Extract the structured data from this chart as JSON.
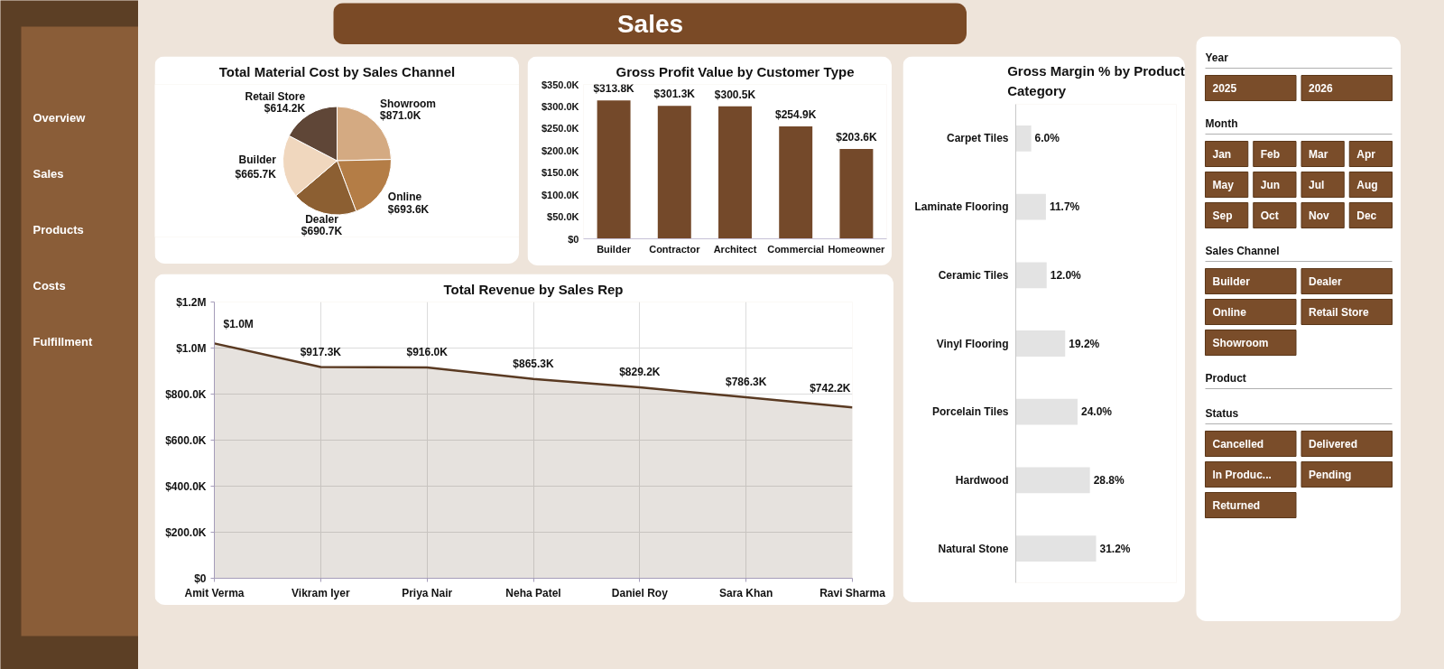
{
  "chart_data": [
    {
      "type": "other",
      "annotations": [
        "Overview",
        "Sales",
        "Products",
        "Costs",
        "Fulfillment"
      ]
    },
    {
      "type": "other",
      "title": "Sales"
    },
    {
      "type": "pie",
      "title": "Total Material Cost by Sales Channel",
      "categories": [
        "Showroom",
        "Online",
        "Dealer",
        "Builder",
        "Retail Store"
      ],
      "values": [
        871.0,
        693.6,
        690.7,
        665.7,
        614.2
      ],
      "colors": [
        "#d4aa82",
        "#b47d46",
        "#8c5f32",
        "#f0d7be",
        "#5f4637"
      ],
      "value_labels": [
        "$871.0K",
        "$693.6K",
        "$690.7K",
        "$665.7K",
        "$614.2K"
      ]
    },
    {
      "type": "bar",
      "title": "Gross Profit Value by Customer Type",
      "categories": [
        "Builder",
        "Contractor",
        "Architect",
        "Commercial",
        "Homeowner"
      ],
      "values": [
        313.8,
        301.3,
        300.5,
        254.9,
        203.6
      ],
      "color": "#74492a",
      "ylim": [
        0,
        350
      ],
      "yticks": [
        {
          "value": 0,
          "label": "$0"
        },
        {
          "value": 50,
          "label": "$50.0K"
        },
        {
          "value": 100,
          "label": "$100.0K"
        },
        {
          "value": 150,
          "label": "$150.0K"
        },
        {
          "value": 200,
          "label": "$200.0K"
        },
        {
          "value": 250,
          "label": "$250.0K"
        },
        {
          "value": 300,
          "label": "$300.0K"
        },
        {
          "value": 350,
          "label": "$350.0K"
        }
      ],
      "value_labels": [
        "$313.8K",
        "$301.3K",
        "$300.5K",
        "$254.9K",
        "$203.6K"
      ]
    },
    {
      "type": "area",
      "title": "Total Revenue by Sales Rep",
      "categories": [
        "Amit Verma",
        "Vikram Iyer",
        "Priya Nair",
        "Neha Patel",
        "Daniel Roy",
        "Sara Khan",
        "Ravi Sharma"
      ],
      "values": [
        1020000,
        917300,
        916000,
        865300,
        829200,
        786300,
        742200
      ],
      "color": "#5a3a22",
      "ylim": [
        0,
        1200000
      ],
      "yticks": [
        {
          "value": 0,
          "label": "$0"
        },
        {
          "value": 200000,
          "label": "$200.0K"
        },
        {
          "value": 400000,
          "label": "$400.0K"
        },
        {
          "value": 600000,
          "label": "$600.0K"
        },
        {
          "value": 800000,
          "label": "$800.0K"
        },
        {
          "value": 1000000,
          "label": "$1.0M"
        },
        {
          "value": 1200000,
          "label": "$1.2M"
        }
      ],
      "grid": true,
      "value_labels": [
        "$1.0M",
        "$917.3K",
        "$916.0K",
        "$865.3K",
        "$829.2K",
        "$786.3K",
        "$742.2K"
      ]
    },
    {
      "type": "bar",
      "orientation": "horizontal",
      "title": "Gross Margin % by Product Category",
      "categories": [
        "Carpet Tiles",
        "Laminate Flooring",
        "Ceramic Tiles",
        "Vinyl Flooring",
        "Porcelain Tiles",
        "Hardwood",
        "Natural Stone"
      ],
      "values": [
        6.0,
        11.7,
        12.0,
        19.2,
        24.0,
        28.8,
        31.2
      ],
      "color": "#e3e3e3",
      "value_labels": [
        "6.0%",
        "11.7%",
        "12.0%",
        "19.2%",
        "24.0%",
        "28.8%",
        "31.2%"
      ]
    },
    {
      "type": "other",
      "title": "Year",
      "categories": [
        "2025",
        "2026"
      ]
    },
    {
      "type": "other",
      "title": "Month",
      "categories": [
        "Jan",
        "Feb",
        "Mar",
        "Apr",
        "May",
        "Jun",
        "Jul",
        "Aug",
        "Sep",
        "Oct",
        "Nov",
        "Dec"
      ]
    },
    {
      "type": "other",
      "title": "Sales Channel",
      "categories": [
        "Builder",
        "Dealer",
        "Online",
        "Retail Store",
        "Showroom"
      ]
    },
    {
      "type": "other",
      "title": "Product"
    },
    {
      "type": "other",
      "title": "Status",
      "categories": [
        "Cancelled",
        "Delivered",
        "In Produc...",
        "Pending",
        "Returned"
      ]
    }
  ]
}
